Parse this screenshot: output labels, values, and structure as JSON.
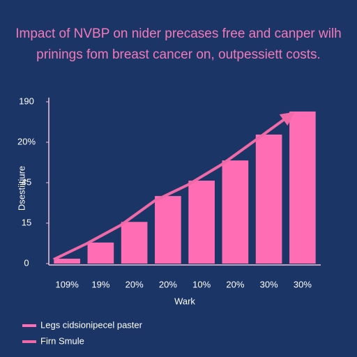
{
  "chart_data": {
    "type": "bar",
    "title": "Impact of NVBP on nider precases free and canper wilh prinings fom breast cancer on, outpessiett costs.",
    "x_label": "Wark",
    "y_label": "Dsestiitjure",
    "categories": [
      "109%",
      "19%",
      "20%",
      "20%",
      "10%",
      "20%",
      "30%",
      "30%"
    ],
    "series": [
      {
        "name": "Legs cidsionipecel paster",
        "color": "#ff6eb4",
        "type": "bar",
        "values": [
          0.12,
          0.52,
          1.03,
          1.67,
          2.05,
          2.55,
          3.19,
          3.76
        ]
      },
      {
        "name": "Firn Smule",
        "color": "#f06aa8",
        "type": "line",
        "values": [
          0.1,
          0.5,
          0.95,
          1.55,
          1.95,
          2.45,
          3.05,
          3.65
        ]
      }
    ],
    "ylim": [
      0,
      4
    ],
    "yticks": [
      0,
      {
        "value": 1,
        "label": "15"
      },
      {
        "value": 2,
        "label": "45"
      },
      {
        "value": 3,
        "label": "20%"
      },
      {
        "value": 4,
        "label": "190"
      }
    ]
  }
}
